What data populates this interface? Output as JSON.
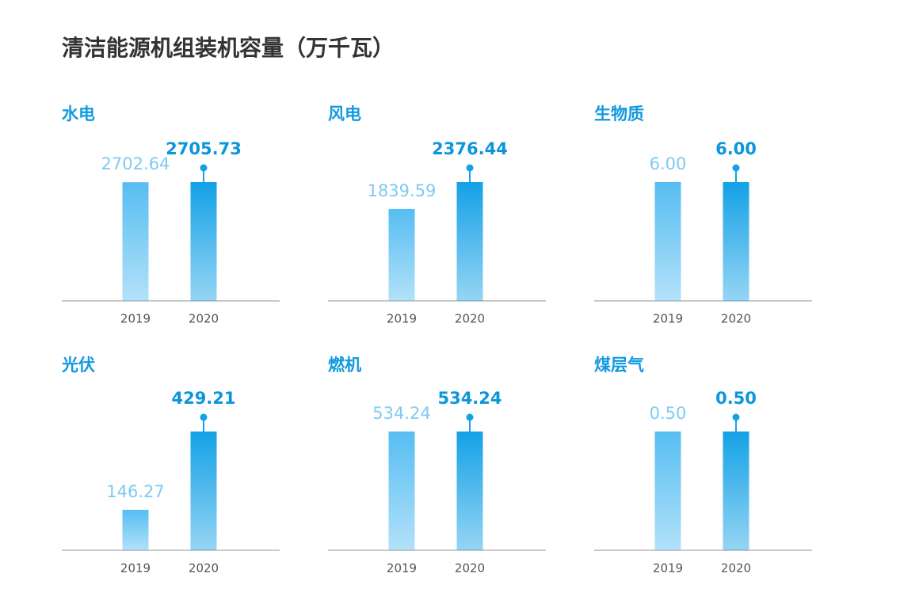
{
  "title": "清洁能源机组装机容量（万千瓦）",
  "chart_data": [
    {
      "type": "bar",
      "title": "水电",
      "categories": [
        "2019",
        "2020"
      ],
      "values": [
        2702.64,
        2705.73
      ],
      "colors": [
        "#56bdf2",
        "#14a1e6"
      ]
    },
    {
      "type": "bar",
      "title": "风电",
      "categories": [
        "2019",
        "2020"
      ],
      "values": [
        1839.59,
        2376.44
      ],
      "colors": [
        "#56bdf2",
        "#14a1e6"
      ]
    },
    {
      "type": "bar",
      "title": "生物质",
      "categories": [
        "2019",
        "2020"
      ],
      "values": [
        6,
        6
      ],
      "value_labels": [
        "6.00",
        "6.00"
      ],
      "colors": [
        "#56bdf2",
        "#14a1e6"
      ]
    },
    {
      "type": "bar",
      "title": "光伏",
      "categories": [
        "2019",
        "2020"
      ],
      "values": [
        146.27,
        429.21
      ],
      "colors": [
        "#56bdf2",
        "#14a1e6"
      ]
    },
    {
      "type": "bar",
      "title": "燃机",
      "categories": [
        "2019",
        "2020"
      ],
      "values": [
        534.24,
        534.24
      ],
      "colors": [
        "#56bdf2",
        "#14a1e6"
      ]
    },
    {
      "type": "bar",
      "title": "煤层气",
      "categories": [
        "2019",
        "2020"
      ],
      "values": [
        0.5,
        0.5
      ],
      "value_labels": [
        "0.50",
        "0.50"
      ],
      "colors": [
        "#56bdf2",
        "#14a1e6"
      ]
    }
  ]
}
